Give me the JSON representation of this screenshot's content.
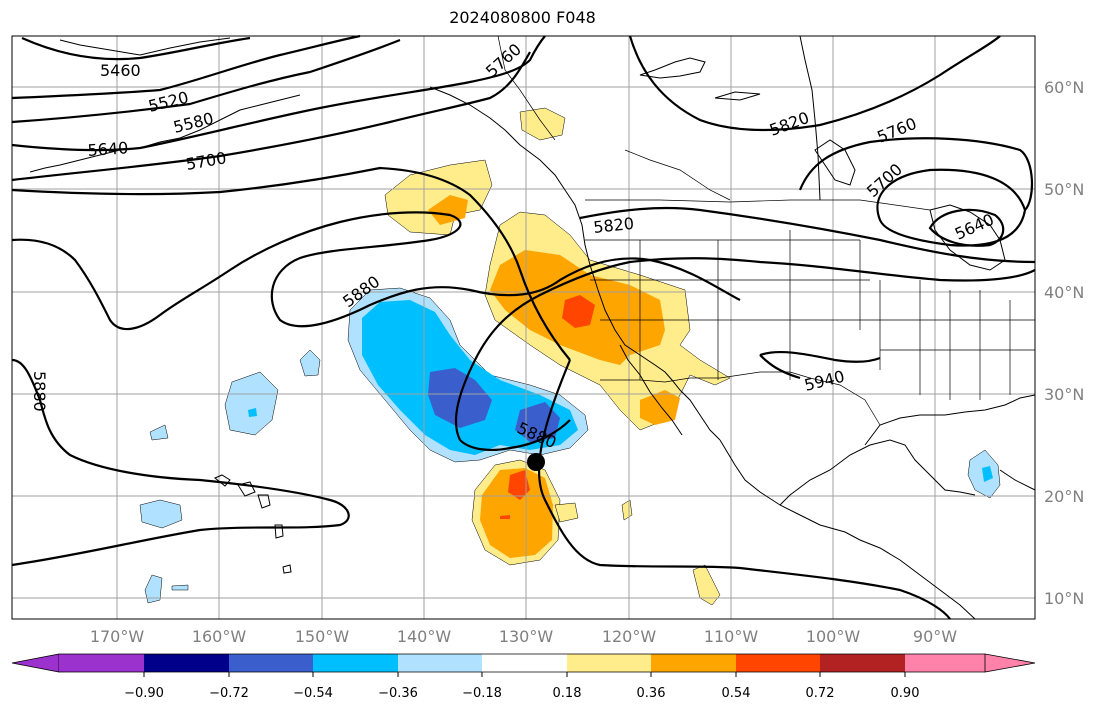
{
  "title": "2024080800 F048",
  "colors": {
    "coast": "#000000",
    "contour": "#000000",
    "grid": "#a0a0a0",
    "tick_label": "#808080",
    "anomaly_marker": "#000000"
  },
  "map": {
    "extent_lon": [
      -180,
      -82
    ],
    "extent_lat": [
      8,
      65
    ],
    "lon_ticks": [
      "170°W",
      "160°W",
      "150°W",
      "140°W",
      "130°W",
      "120°W",
      "110°W",
      "100°W",
      "90°W"
    ],
    "lon_tick_values": [
      -170,
      -160,
      -150,
      -140,
      -130,
      -120,
      -110,
      -100,
      -90
    ],
    "lat_ticks": [
      "60°N",
      "50°N",
      "40°N",
      "30°N",
      "20°N",
      "10°N"
    ],
    "lat_tick_values": [
      60,
      50,
      40,
      30,
      20,
      10
    ],
    "contour_labels": [
      "5460",
      "5520",
      "5580",
      "5640",
      "5700",
      "5760",
      "5820",
      "5880",
      "5880",
      "5880",
      "5940",
      "5820",
      "5760",
      "5700",
      "5640"
    ],
    "marker": "storm-center"
  },
  "colorbar": {
    "ticks": [
      "−0.90",
      "−0.72",
      "−0.54",
      "−0.36",
      "−0.18",
      "0.18",
      "0.36",
      "0.54",
      "0.72",
      "0.90"
    ],
    "colors": [
      "#9b32cd",
      "#00008b",
      "#3a5fcd",
      "#00bfff",
      "#b0e2ff",
      "#ffffff",
      "#ffec8b",
      "#ffa500",
      "#ff4500",
      "#b22222",
      "#ff82ab"
    ]
  }
}
